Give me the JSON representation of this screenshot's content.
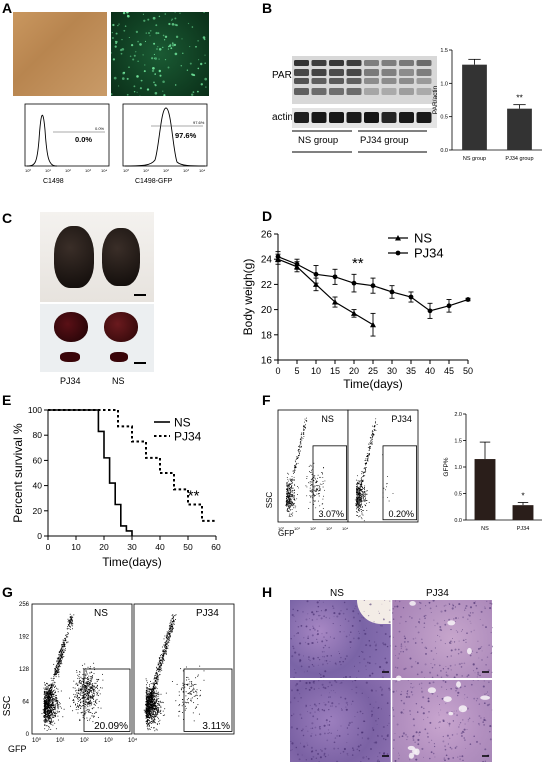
{
  "panel_letters": {
    "a": "A",
    "b": "B",
    "c": "C",
    "d": "D",
    "e": "E",
    "f": "F",
    "g": "G",
    "h": "H"
  },
  "panelA": {
    "histograms": [
      {
        "percent": "0.0%",
        "small_label": "0.0%",
        "xlabel": "C1498",
        "ticks": [
          "10⁰",
          "10¹",
          "10²",
          "10³",
          "10⁴"
        ]
      },
      {
        "percent": "97.6%",
        "small_label": "97.6%",
        "xlabel": "C1498-GFP",
        "ticks": [
          "10⁰",
          "10¹",
          "10²",
          "10³",
          "10⁴"
        ]
      }
    ],
    "colors": {
      "bright": "#c49360",
      "fluor_bg": "#0d3a22",
      "fluor_dot": "#6fe39a"
    }
  },
  "panelB": {
    "blot_labels": {
      "par": "PAR",
      "actin": "actin"
    },
    "groups": {
      "ns": "NS group",
      "pj34": "PJ34 group"
    }
  },
  "panelC": {
    "labels": {
      "pj34": "PJ34",
      "ns": "NS"
    }
  },
  "panelF": {
    "plots": [
      {
        "name": "NS",
        "percent": "3.07%"
      },
      {
        "name": "PJ34",
        "percent": "0.20%"
      }
    ],
    "axes": {
      "ssc": "SSC",
      "gfp": "GFP"
    },
    "tick_labels": [
      "10⁰",
      "10¹",
      "10²",
      "10³",
      "10⁴"
    ]
  },
  "panelG": {
    "plots": [
      {
        "name": "NS",
        "percent": "20.09%"
      },
      {
        "name": "PJ34",
        "percent": "3.11%"
      }
    ],
    "axes": {
      "ssc": "SSC",
      "gfp": "GFP"
    },
    "yticks": [
      "0",
      "64",
      "128",
      "192",
      "256"
    ],
    "xticks": [
      "10⁰",
      "10¹",
      "10²",
      "10³",
      "10⁴"
    ]
  },
  "panelH": {
    "labels": {
      "ns": "NS",
      "pj34": "PJ34"
    }
  },
  "chart_data": [
    {
      "type": "bar",
      "panel": "B",
      "categories": [
        "NS group",
        "PJ34 group"
      ],
      "values": [
        1.28,
        0.62
      ],
      "errors": [
        0.08,
        0.06
      ],
      "ylabel": "PAR/actin",
      "ylim": [
        0,
        1.5
      ],
      "yticks": [
        "0.0",
        "0.5",
        "1.0",
        "1.5"
      ],
      "annotation": "**",
      "bar_color": "#333333"
    },
    {
      "type": "line",
      "panel": "D",
      "x": [
        0,
        5,
        10,
        15,
        20,
        25,
        30,
        35,
        40,
        45,
        50
      ],
      "xlabel": "Time(days)",
      "ylabel": "Body weigh(g)",
      "xlim": [
        0,
        50
      ],
      "ylim": [
        16,
        26
      ],
      "xticks": [
        "0",
        "5",
        "10",
        "15",
        "20",
        "25",
        "30",
        "35",
        "40",
        "45",
        "50"
      ],
      "yticks": [
        "16",
        "18",
        "20",
        "22",
        "24",
        "26"
      ],
      "annotation": "**",
      "legend_position": "top-right",
      "series": [
        {
          "name": "NS",
          "marker": "triangle",
          "x": [
            0,
            5,
            10,
            15,
            20,
            25
          ],
          "values": [
            24.0,
            23.4,
            22.0,
            20.6,
            19.7,
            18.8
          ],
          "errors": [
            0.4,
            0.4,
            0.5,
            0.4,
            0.3,
            0.9
          ]
        },
        {
          "name": "PJ34",
          "marker": "circle",
          "x": [
            0,
            5,
            10,
            15,
            20,
            25,
            30,
            35,
            40,
            45,
            50
          ],
          "values": [
            24.2,
            23.6,
            22.8,
            22.6,
            22.1,
            21.9,
            21.4,
            21.0,
            19.9,
            20.3,
            20.8
          ],
          "errors": [
            0.4,
            0.4,
            0.7,
            0.6,
            0.7,
            0.6,
            0.5,
            0.4,
            0.6,
            0.5,
            0.1
          ]
        }
      ]
    },
    {
      "type": "line",
      "panel": "E",
      "xlabel": "Time(days)",
      "ylabel": "Percent survival %",
      "xlim": [
        0,
        60
      ],
      "ylim": [
        0,
        100
      ],
      "xticks": [
        "0",
        "10",
        "20",
        "30",
        "40",
        "50",
        "60"
      ],
      "yticks": [
        "0",
        "20",
        "40",
        "60",
        "80",
        "100"
      ],
      "annotation": "**",
      "legend_position": "top-right",
      "series": [
        {
          "name": "NS",
          "style": "solid",
          "x": [
            0,
            18,
            18,
            20,
            20,
            22,
            22,
            24,
            24,
            26,
            26,
            28,
            28,
            30,
            30
          ],
          "values": [
            100,
            100,
            83,
            83,
            62,
            62,
            42,
            42,
            25,
            25,
            8,
            8,
            4,
            4,
            0
          ]
        },
        {
          "name": "PJ34",
          "style": "dotted",
          "x": [
            0,
            25,
            25,
            30,
            30,
            35,
            35,
            40,
            40,
            45,
            45,
            50,
            50,
            55,
            55,
            60
          ],
          "values": [
            100,
            100,
            87,
            87,
            75,
            75,
            62,
            62,
            50,
            50,
            37,
            37,
            25,
            25,
            12,
            12
          ]
        }
      ]
    },
    {
      "type": "bar",
      "panel": "F",
      "categories": [
        "NS",
        "PJ34"
      ],
      "values": [
        1.15,
        0.28
      ],
      "errors": [
        0.32,
        0.05
      ],
      "ylabel": "GFP%",
      "ylim": [
        0,
        2.0
      ],
      "yticks": [
        "0.0",
        "0.5",
        "1.0",
        "1.5",
        "2.0"
      ],
      "annotation": "*",
      "bar_color": "#2a1e1a"
    }
  ]
}
